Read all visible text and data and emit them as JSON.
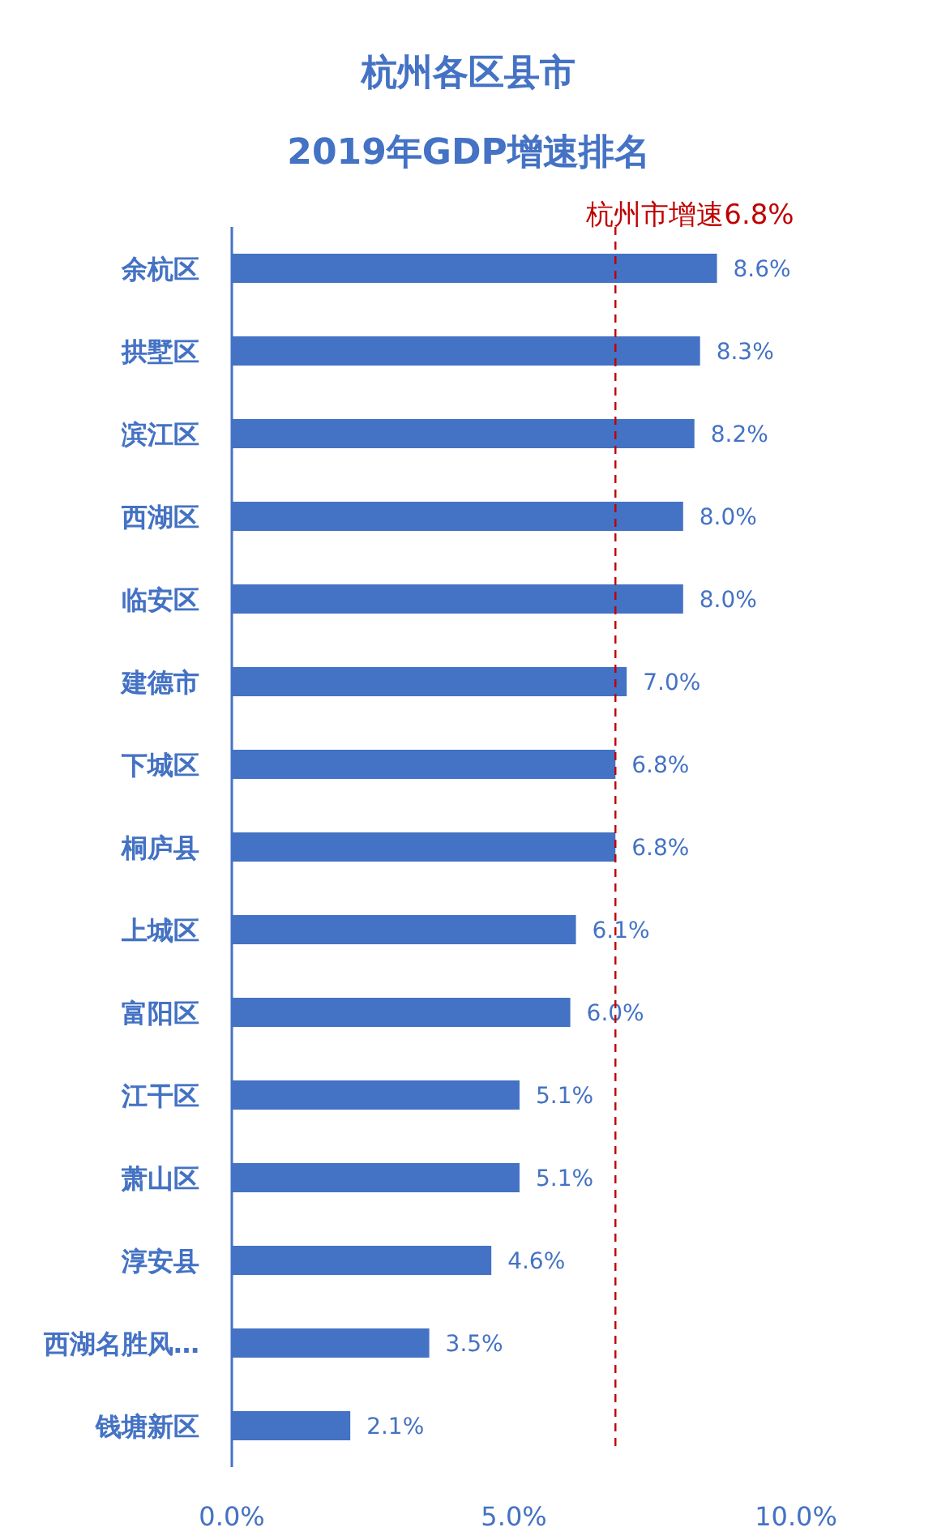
{
  "chart_data": {
    "type": "bar",
    "orientation": "horizontal",
    "title": "杭州各区县市",
    "subtitle": "2019年GDP增速排名",
    "categories": [
      "余杭区",
      "拱墅区",
      "滨江区",
      "西湖区",
      "临安区",
      "建德市",
      "下城区",
      "桐庐县",
      "上城区",
      "富阳区",
      "江干区",
      "萧山区",
      "淳安县",
      "西湖名胜风…",
      "钱塘新区"
    ],
    "values": [
      8.6,
      8.3,
      8.2,
      8.0,
      8.0,
      7.0,
      6.8,
      6.8,
      6.1,
      6.0,
      5.1,
      5.1,
      4.6,
      3.5,
      2.1
    ],
    "value_labels": [
      "8.6%",
      "8.3%",
      "8.2%",
      "8.0%",
      "8.0%",
      "7.0%",
      "6.8%",
      "6.8%",
      "6.1%",
      "6.0%",
      "5.1%",
      "5.1%",
      "4.6%",
      "3.5%",
      "2.1%"
    ],
    "color": "#4472c4",
    "xlim": [
      0,
      10
    ],
    "xticks": [
      {
        "value": 0,
        "label": "0.0%"
      },
      {
        "value": 5,
        "label": "5.0%"
      },
      {
        "value": 10,
        "label": "10.0%"
      }
    ],
    "ref_lines": [
      {
        "axis": "x",
        "value": 6.8,
        "label": "杭州市增速6.8%",
        "color": "#c00000",
        "line_style": "dashed"
      }
    ],
    "grid": false
  }
}
